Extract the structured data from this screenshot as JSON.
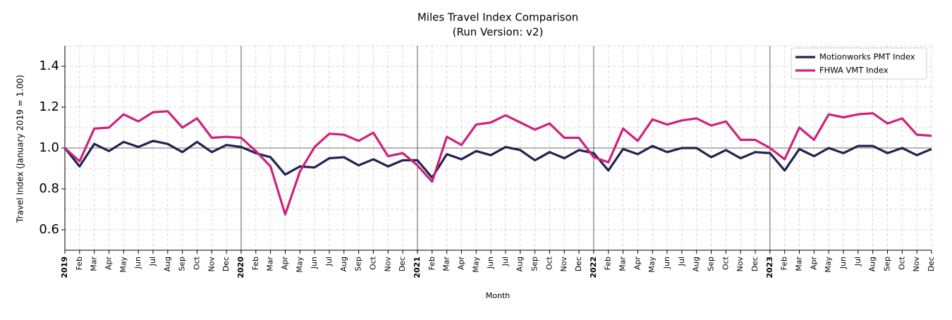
{
  "chart_data": {
    "type": "line",
    "title": "Miles Travel Index Comparison",
    "subtitle": "(Run Version: v2)",
    "x_label": "Month",
    "y_label": "Travel Index (January 2019 = 1.00)",
    "categories": [
      "2019",
      "Feb",
      "Mar",
      "Apr",
      "May",
      "Jun",
      "Jul",
      "Aug",
      "Sep",
      "Oct",
      "Nov",
      "Dec",
      "2020",
      "Feb",
      "Mar",
      "Apr",
      "May",
      "Jun",
      "Jul",
      "Aug",
      "Sep",
      "Oct",
      "Nov",
      "Dec",
      "2021",
      "Feb",
      "Mar",
      "Apr",
      "May",
      "Jun",
      "Jul",
      "Aug",
      "Sep",
      "Oct",
      "Nov",
      "Dec",
      "2022",
      "Feb",
      "Mar",
      "Apr",
      "May",
      "Jun",
      "Jul",
      "Aug",
      "Sep",
      "Oct",
      "Nov",
      "Dec",
      "2023",
      "Feb",
      "Mar",
      "Apr",
      "May",
      "Jun",
      "Jul",
      "Aug",
      "Sep",
      "Oct",
      "Nov",
      "Dec"
    ],
    "series": [
      {
        "name": "Motionworks PMT Index",
        "color": "#1f2350",
        "values": [
          1.0,
          0.91,
          1.02,
          0.985,
          1.03,
          1.005,
          1.035,
          1.02,
          0.98,
          1.03,
          0.98,
          1.015,
          1.005,
          0.975,
          0.955,
          0.87,
          0.91,
          0.905,
          0.95,
          0.955,
          0.915,
          0.945,
          0.91,
          0.94,
          0.94,
          0.855,
          0.97,
          0.945,
          0.985,
          0.965,
          1.005,
          0.99,
          0.94,
          0.98,
          0.95,
          0.99,
          0.975,
          0.89,
          0.995,
          0.97,
          1.01,
          0.98,
          1.0,
          1.0,
          0.955,
          0.99,
          0.95,
          0.98,
          0.975,
          0.89,
          0.995,
          0.96,
          1.0,
          0.975,
          1.01,
          1.01,
          0.975,
          1.0,
          0.965,
          0.995
        ]
      },
      {
        "name": "FHWA VMT Index",
        "color": "#d0207f",
        "values": [
          1.0,
          0.935,
          1.095,
          1.1,
          1.165,
          1.13,
          1.175,
          1.18,
          1.1,
          1.145,
          1.05,
          1.055,
          1.05,
          0.985,
          0.91,
          0.675,
          0.885,
          1.005,
          1.07,
          1.065,
          1.035,
          1.075,
          0.96,
          0.975,
          0.915,
          0.835,
          1.055,
          1.015,
          1.115,
          1.125,
          1.16,
          1.125,
          1.09,
          1.12,
          1.05,
          1.05,
          0.955,
          0.93,
          1.095,
          1.035,
          1.14,
          1.115,
          1.135,
          1.145,
          1.11,
          1.13,
          1.04,
          1.04,
          1.0,
          0.945,
          1.1,
          1.04,
          1.165,
          1.15,
          1.165,
          1.17,
          1.12,
          1.145,
          1.065,
          1.06
        ]
      }
    ],
    "ylim": [
      0.5,
      1.5
    ],
    "yticks": [
      0.6,
      0.8,
      {
        "value": 1,
        "label": "1.0"
      },
      1.2,
      1.4
    ],
    "y_minor_ticks": [
      0.7,
      0.9,
      1.1,
      1.3,
      1.5
    ],
    "reference_line": 1,
    "grid": true,
    "legend": "upper right"
  }
}
